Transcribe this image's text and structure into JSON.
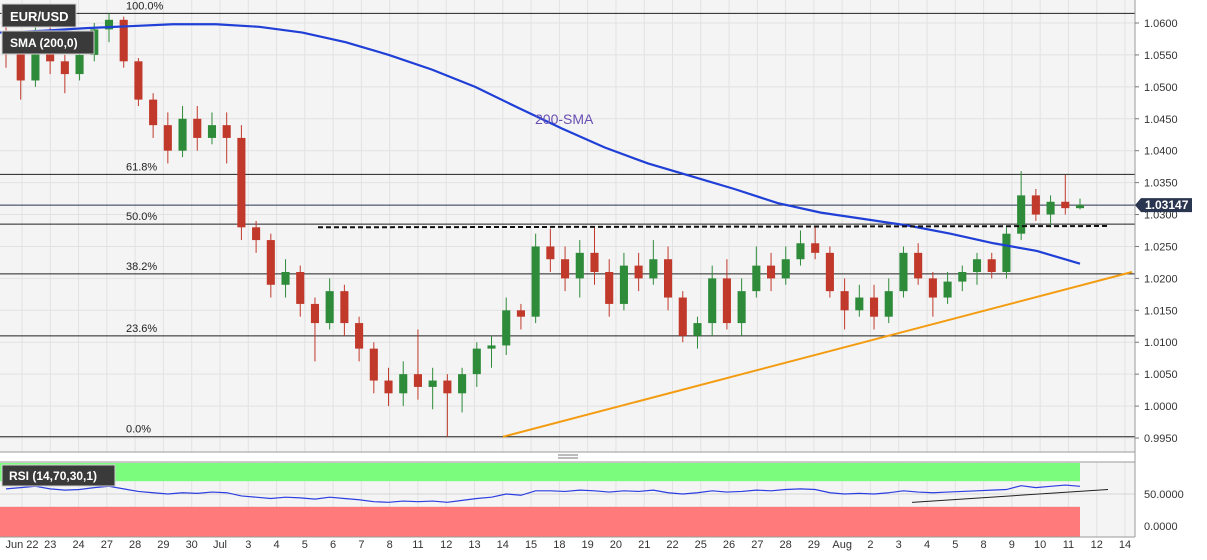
{
  "header": {
    "symbol": "EUR/USD",
    "indicator": "SMA (200,0)",
    "rsi_label": "RSI (14,70,30,1)"
  },
  "colors": {
    "bull": "#2e8b3a",
    "bear": "#c0392b",
    "sma": "#1f3fd6",
    "trendline": "#f39c12",
    "sma_annotation": "#6a4fb3",
    "rsi_overbought_zone": "#7cfc7c",
    "rsi_oversold_zone": "#ff7b7b",
    "rsi_line": "#2c3ee0",
    "panel_bg": "#f4f4f4"
  },
  "chart_data": [
    {
      "type": "candlestick",
      "title": "EUR/USD",
      "ylim": [
        0.9925,
        1.0625
      ],
      "y_ticks": [
        "1.0600",
        "1.0550",
        "1.0500",
        "1.0450",
        "1.0400",
        "1.0350",
        "1.0300",
        "1.0250",
        "1.0200",
        "1.0150",
        "1.0100",
        "1.0050",
        "1.0000",
        "0.9950"
      ],
      "x_ticks": [
        "Jun 22",
        "23",
        "24",
        "27",
        "28",
        "29",
        "30",
        "Jul",
        "3",
        "4",
        "5",
        "6",
        "7",
        "8",
        "11",
        "12",
        "13",
        "14",
        "15",
        "18",
        "19",
        "20",
        "21",
        "22",
        "25",
        "26",
        "27",
        "28",
        "29",
        "Aug",
        "2",
        "3",
        "4",
        "5",
        "8",
        "9",
        "10",
        "11",
        "12",
        "14"
      ],
      "current_price": "1.03147",
      "candles": [
        {
          "o": 1.058,
          "h": 1.06,
          "l": 1.053,
          "c": 1.056
        },
        {
          "o": 1.056,
          "h": 1.057,
          "l": 1.048,
          "c": 1.051
        },
        {
          "o": 1.051,
          "h": 1.06,
          "l": 1.05,
          "c": 1.058
        },
        {
          "o": 1.058,
          "h": 1.06,
          "l": 1.052,
          "c": 1.054
        },
        {
          "o": 1.054,
          "h": 1.055,
          "l": 1.049,
          "c": 1.052
        },
        {
          "o": 1.052,
          "h": 1.056,
          "l": 1.051,
          "c": 1.055
        },
        {
          "o": 1.055,
          "h": 1.06,
          "l": 1.054,
          "c": 1.059
        },
        {
          "o": 1.059,
          "h": 1.0615,
          "l": 1.057,
          "c": 1.0605
        },
        {
          "o": 1.0605,
          "h": 1.061,
          "l": 1.053,
          "c": 1.054
        },
        {
          "o": 1.054,
          "h": 1.0545,
          "l": 1.047,
          "c": 1.048
        },
        {
          "o": 1.048,
          "h": 1.049,
          "l": 1.042,
          "c": 1.044
        },
        {
          "o": 1.044,
          "h": 1.046,
          "l": 1.038,
          "c": 1.04
        },
        {
          "o": 1.04,
          "h": 1.047,
          "l": 1.039,
          "c": 1.045
        },
        {
          "o": 1.045,
          "h": 1.047,
          "l": 1.04,
          "c": 1.042
        },
        {
          "o": 1.042,
          "h": 1.046,
          "l": 1.041,
          "c": 1.044
        },
        {
          "o": 1.044,
          "h": 1.046,
          "l": 1.038,
          "c": 1.042
        },
        {
          "o": 1.042,
          "h": 1.044,
          "l": 1.026,
          "c": 1.028
        },
        {
          "o": 1.028,
          "h": 1.029,
          "l": 1.024,
          "c": 1.026
        },
        {
          "o": 1.026,
          "h": 1.027,
          "l": 1.017,
          "c": 1.019
        },
        {
          "o": 1.019,
          "h": 1.023,
          "l": 1.017,
          "c": 1.021
        },
        {
          "o": 1.021,
          "h": 1.022,
          "l": 1.014,
          "c": 1.016
        },
        {
          "o": 1.016,
          "h": 1.017,
          "l": 1.007,
          "c": 1.013
        },
        {
          "o": 1.013,
          "h": 1.02,
          "l": 1.012,
          "c": 1.018
        },
        {
          "o": 1.018,
          "h": 1.019,
          "l": 1.011,
          "c": 1.013
        },
        {
          "o": 1.013,
          "h": 1.014,
          "l": 1.007,
          "c": 1.009
        },
        {
          "o": 1.009,
          "h": 1.01,
          "l": 1.002,
          "c": 1.004
        },
        {
          "o": 1.004,
          "h": 1.006,
          "l": 1.0,
          "c": 1.002
        },
        {
          "o": 1.002,
          "h": 1.007,
          "l": 1.0,
          "c": 1.005
        },
        {
          "o": 1.005,
          "h": 1.012,
          "l": 1.001,
          "c": 1.003
        },
        {
          "o": 1.003,
          "h": 1.006,
          "l": 0.9995,
          "c": 1.004
        },
        {
          "o": 1.004,
          "h": 1.005,
          "l": 0.9952,
          "c": 1.002
        },
        {
          "o": 1.002,
          "h": 1.006,
          "l": 0.999,
          "c": 1.005
        },
        {
          "o": 1.005,
          "h": 1.01,
          "l": 1.003,
          "c": 1.009
        },
        {
          "o": 1.009,
          "h": 1.011,
          "l": 1.006,
          "c": 1.0095
        },
        {
          "o": 1.0095,
          "h": 1.017,
          "l": 1.008,
          "c": 1.015
        },
        {
          "o": 1.015,
          "h": 1.016,
          "l": 1.012,
          "c": 1.014
        },
        {
          "o": 1.014,
          "h": 1.027,
          "l": 1.013,
          "c": 1.025
        },
        {
          "o": 1.025,
          "h": 1.0278,
          "l": 1.021,
          "c": 1.023
        },
        {
          "o": 1.023,
          "h": 1.025,
          "l": 1.018,
          "c": 1.02
        },
        {
          "o": 1.02,
          "h": 1.026,
          "l": 1.017,
          "c": 1.024
        },
        {
          "o": 1.024,
          "h": 1.028,
          "l": 1.019,
          "c": 1.021
        },
        {
          "o": 1.021,
          "h": 1.023,
          "l": 1.014,
          "c": 1.016
        },
        {
          "o": 1.016,
          "h": 1.024,
          "l": 1.015,
          "c": 1.022
        },
        {
          "o": 1.022,
          "h": 1.024,
          "l": 1.018,
          "c": 1.02
        },
        {
          "o": 1.02,
          "h": 1.026,
          "l": 1.019,
          "c": 1.023
        },
        {
          "o": 1.023,
          "h": 1.025,
          "l": 1.015,
          "c": 1.017
        },
        {
          "o": 1.017,
          "h": 1.018,
          "l": 1.01,
          "c": 1.011
        },
        {
          "o": 1.011,
          "h": 1.014,
          "l": 1.009,
          "c": 1.013
        },
        {
          "o": 1.013,
          "h": 1.022,
          "l": 1.011,
          "c": 1.02
        },
        {
          "o": 1.02,
          "h": 1.023,
          "l": 1.012,
          "c": 1.013
        },
        {
          "o": 1.013,
          "h": 1.02,
          "l": 1.011,
          "c": 1.018
        },
        {
          "o": 1.018,
          "h": 1.025,
          "l": 1.017,
          "c": 1.022
        },
        {
          "o": 1.022,
          "h": 1.024,
          "l": 1.018,
          "c": 1.02
        },
        {
          "o": 1.02,
          "h": 1.025,
          "l": 1.019,
          "c": 1.023
        },
        {
          "o": 1.023,
          "h": 1.0275,
          "l": 1.022,
          "c": 1.0255
        },
        {
          "o": 1.0255,
          "h": 1.028,
          "l": 1.023,
          "c": 1.024
        },
        {
          "o": 1.024,
          "h": 1.025,
          "l": 1.017,
          "c": 1.018
        },
        {
          "o": 1.018,
          "h": 1.02,
          "l": 1.012,
          "c": 1.015
        },
        {
          "o": 1.015,
          "h": 1.019,
          "l": 1.014,
          "c": 1.017
        },
        {
          "o": 1.017,
          "h": 1.019,
          "l": 1.012,
          "c": 1.014
        },
        {
          "o": 1.014,
          "h": 1.02,
          "l": 1.013,
          "c": 1.018
        },
        {
          "o": 1.018,
          "h": 1.025,
          "l": 1.017,
          "c": 1.024
        },
        {
          "o": 1.024,
          "h": 1.0255,
          "l": 1.019,
          "c": 1.02
        },
        {
          "o": 1.02,
          "h": 1.021,
          "l": 1.014,
          "c": 1.017
        },
        {
          "o": 1.017,
          "h": 1.021,
          "l": 1.016,
          "c": 1.0195
        },
        {
          "o": 1.0195,
          "h": 1.022,
          "l": 1.018,
          "c": 1.021
        },
        {
          "o": 1.021,
          "h": 1.024,
          "l": 1.019,
          "c": 1.023
        },
        {
          "o": 1.023,
          "h": 1.024,
          "l": 1.02,
          "c": 1.021
        },
        {
          "o": 1.021,
          "h": 1.028,
          "l": 1.02,
          "c": 1.027
        },
        {
          "o": 1.027,
          "h": 1.0368,
          "l": 1.026,
          "c": 1.033
        },
        {
          "o": 1.033,
          "h": 1.034,
          "l": 1.029,
          "c": 1.03
        },
        {
          "o": 1.03,
          "h": 1.033,
          "l": 1.028,
          "c": 1.032
        },
        {
          "o": 1.032,
          "h": 1.0362,
          "l": 1.03,
          "c": 1.031
        },
        {
          "o": 1.031,
          "h": 1.0325,
          "l": 1.0308,
          "c": 1.0315
        }
      ],
      "sma_200": [
        1.0585,
        1.0588,
        1.0592,
        1.0595,
        1.0598,
        1.0598,
        1.0594,
        1.0585,
        1.057,
        1.055,
        1.0527,
        1.05,
        1.0467,
        1.0435,
        1.0405,
        1.038,
        1.036,
        1.034,
        1.0318,
        1.0303,
        1.0293,
        1.0283,
        1.027,
        1.0255,
        1.0243,
        1.0223
      ],
      "fibonacci": [
        {
          "label": "100.0%",
          "value": 1.0615
        },
        {
          "label": "61.8%",
          "value": 1.0363
        },
        {
          "label": "50.0%",
          "value": 1.0285
        },
        {
          "label": "38.2%",
          "value": 1.0207
        },
        {
          "label": "23.6%",
          "value": 1.011
        },
        {
          "label": "0.0%",
          "value": 0.9952
        }
      ],
      "resistance_dashed": [
        1.028,
        1.0282
      ],
      "support_trendline": [
        0.9952,
        1.021
      ],
      "annotation": "200-SMA"
    },
    {
      "type": "line",
      "title": "RSI (14,70,30,1)",
      "ylim": [
        0,
        100
      ],
      "y_ticks": [
        "50.0000",
        "0.0000"
      ],
      "overbought": 70,
      "oversold": 30,
      "values": [
        58,
        60,
        62,
        58,
        56,
        57,
        60,
        62,
        58,
        54,
        52,
        50,
        52,
        51,
        53,
        52,
        47,
        45,
        43,
        45,
        44,
        42,
        45,
        43,
        41,
        38,
        37,
        39,
        38,
        39,
        37,
        40,
        43,
        45,
        50,
        48,
        55,
        55,
        54,
        56,
        55,
        53,
        55,
        54,
        56,
        52,
        50,
        52,
        55,
        53,
        54,
        56,
        55,
        57,
        58,
        57,
        52,
        50,
        51,
        50,
        52,
        55,
        53,
        52,
        53,
        54,
        55,
        56,
        57,
        63,
        60,
        62,
        64,
        62
      ],
      "trendline": [
        37,
        57
      ]
    }
  ]
}
